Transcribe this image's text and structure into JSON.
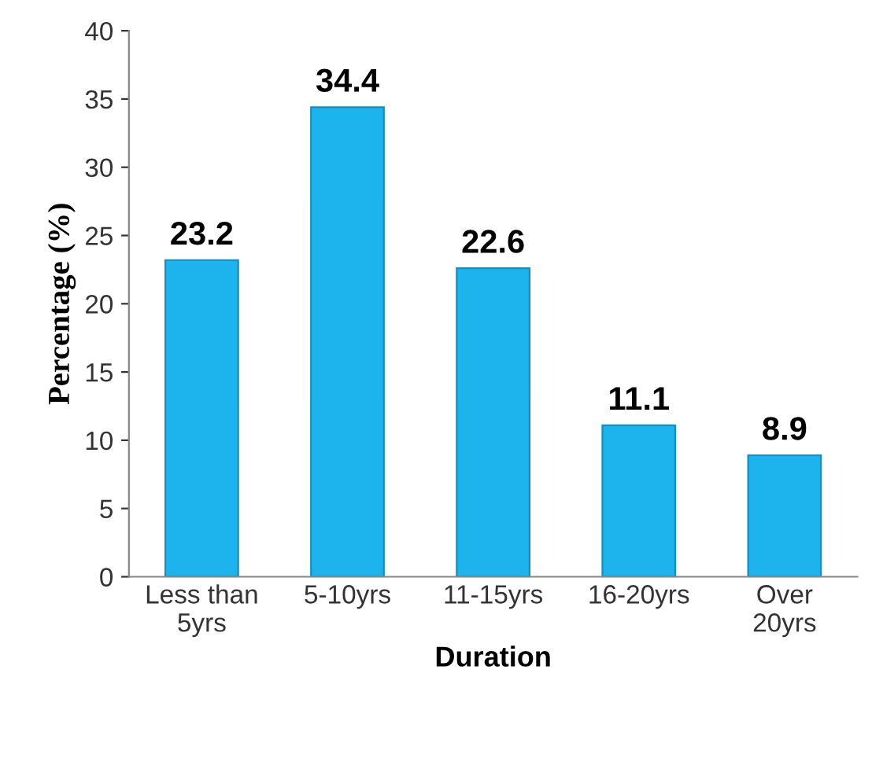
{
  "chart_data": {
    "type": "bar",
    "xlabel": "Duration",
    "ylabel": "Percentage (%)",
    "categories": [
      "Less than\n5yrs",
      "5-10yrs",
      "11-15yrs",
      "16-20yrs",
      "Over\n20yrs"
    ],
    "values": [
      23.2,
      34.4,
      22.6,
      11.1,
      8.9
    ],
    "color": "#1db4ee",
    "ylim": [
      0,
      40
    ],
    "yticks": [
      0,
      5,
      10,
      15,
      20,
      25,
      30,
      35,
      40
    ],
    "data_labels": true,
    "grid": false,
    "legend": false
  }
}
